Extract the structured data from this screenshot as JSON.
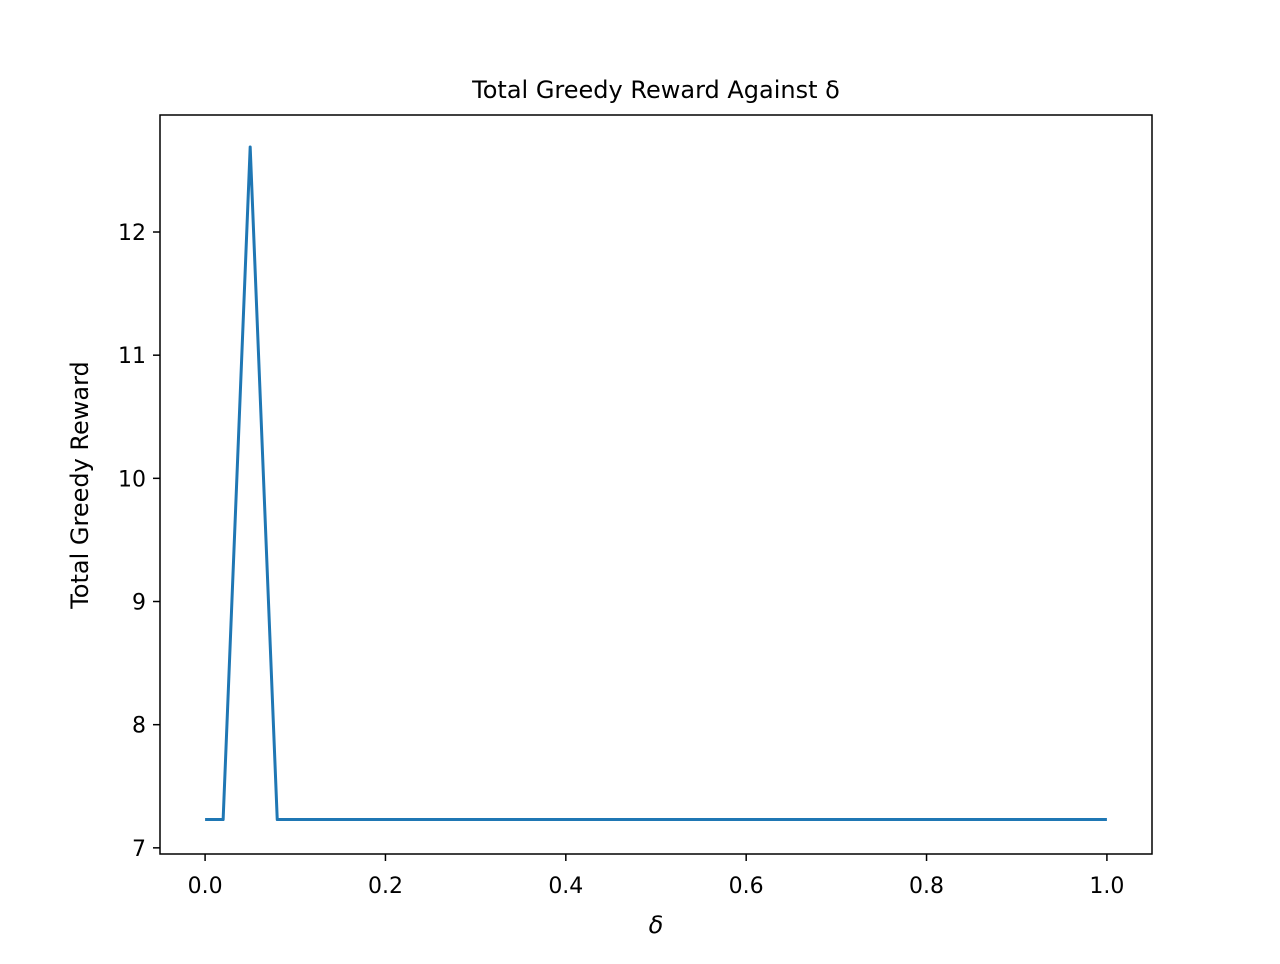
{
  "chart_data": {
    "type": "line",
    "title": "Total Greedy Reward Against δ",
    "xlabel": "δ",
    "ylabel": "Total Greedy Reward",
    "xlim": [
      -0.05,
      1.05
    ],
    "ylim": [
      6.95,
      12.95
    ],
    "x_ticks": [
      0.0,
      0.2,
      0.4,
      0.6,
      0.8,
      1.0
    ],
    "x_tick_labels": [
      "0.0",
      "0.2",
      "0.4",
      "0.6",
      "0.8",
      "1.0"
    ],
    "y_ticks": [
      7,
      8,
      9,
      10,
      11,
      12
    ],
    "y_tick_labels": [
      "7",
      "8",
      "9",
      "10",
      "11",
      "12"
    ],
    "grid": false,
    "series": [
      {
        "color": "#1f77b4",
        "x": [
          0.0,
          0.02,
          0.05,
          0.08,
          1.0
        ],
        "y": [
          7.23,
          7.23,
          12.69,
          7.23,
          7.23
        ]
      }
    ]
  }
}
